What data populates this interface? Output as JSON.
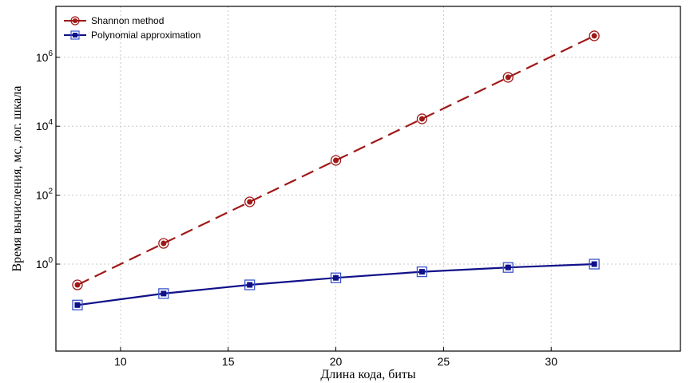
{
  "chart_data": {
    "type": "line",
    "x": [
      8,
      12,
      16,
      20,
      24,
      28,
      32
    ],
    "xlabel": "Длина кода, биты",
    "ylabel": "Время вычисления, мс, лог. шкала",
    "xlim": [
      7,
      36
    ],
    "ylim": [
      0.003,
      30000000
    ],
    "yscale": "log",
    "xticks": [
      10,
      15,
      20,
      25,
      30
    ],
    "yticks": [
      {
        "value": 1,
        "base": "10",
        "exp": "0"
      },
      {
        "value": 100,
        "base": "10",
        "exp": "2"
      },
      {
        "value": 10000,
        "base": "10",
        "exp": "4"
      },
      {
        "value": 1000000,
        "base": "10",
        "exp": "6"
      }
    ],
    "grid": true,
    "legend": "top-left",
    "series": [
      {
        "name": "Shannon method",
        "color": "#a01818",
        "dash": true,
        "marker": "circle",
        "values": [
          0.25,
          4,
          64,
          1024,
          16384,
          262144,
          4194304
        ]
      },
      {
        "name": "Polynomial approximation",
        "color": "#10108a",
        "dash": false,
        "marker": "square",
        "values": [
          0.065,
          0.14,
          0.25,
          0.4,
          0.6,
          0.8,
          1.0
        ]
      }
    ]
  }
}
